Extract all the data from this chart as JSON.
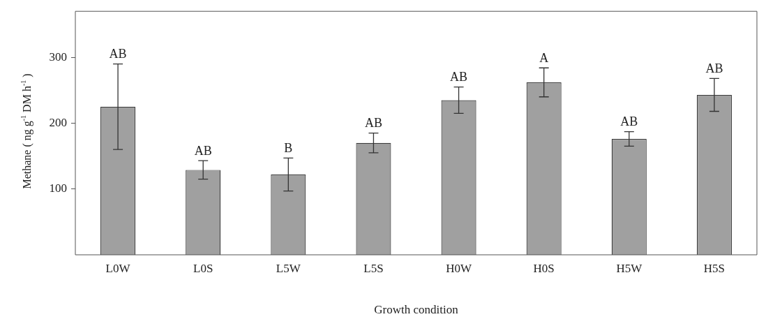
{
  "chart_data": {
    "type": "bar",
    "xlabel": "Growth condition",
    "ylabel": "Methane ( ng g$^{-1}$ DM h$^{-1}$ )",
    "categories": [
      "L0W",
      "L0S",
      "L5W",
      "L5S",
      "H0W",
      "H0S",
      "H5W",
      "H5S"
    ],
    "values": [
      225,
      129,
      122,
      170,
      235,
      262,
      176,
      243
    ],
    "errors": [
      65,
      14,
      25,
      15,
      20,
      22,
      11,
      25
    ],
    "color": "#a0a0a0",
    "ylim": [
      0,
      370
    ],
    "yticks": [
      100,
      200,
      300
    ],
    "grid": false,
    "annotations": [
      {
        "text": "AB",
        "x": "L0W",
        "y": 290
      },
      {
        "text": "AB",
        "x": "L0S",
        "y": 143
      },
      {
        "text": "B",
        "x": "L5W",
        "y": 147
      },
      {
        "text": "AB",
        "x": "L5S",
        "y": 185
      },
      {
        "text": "AB",
        "x": "H0W",
        "y": 255
      },
      {
        "text": "A",
        "x": "H0S",
        "y": 284
      },
      {
        "text": "AB",
        "x": "H5W",
        "y": 187
      },
      {
        "text": "AB",
        "x": "H5S",
        "y": 268
      }
    ]
  }
}
